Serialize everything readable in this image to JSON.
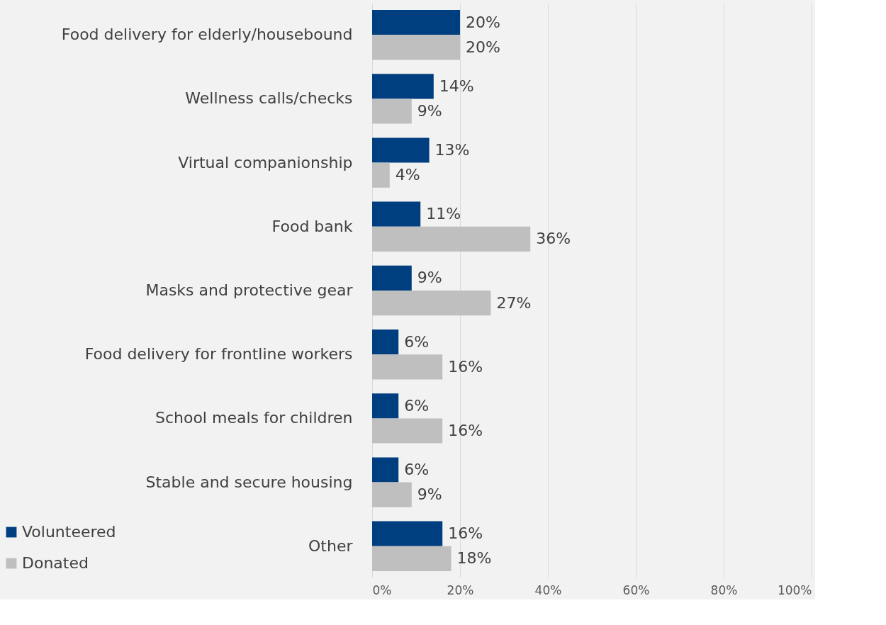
{
  "chart_data": {
    "type": "bar",
    "orientation": "horizontal",
    "categories": [
      "Food delivery for elderly/housebound",
      "Wellness calls/checks",
      "Virtual companionship",
      "Food bank",
      "Masks and protective gear",
      "Food delivery for frontline workers",
      "School meals for children",
      "Stable and secure housing",
      "Other"
    ],
    "series": [
      {
        "name": "Volunteered",
        "color": "#003f7f",
        "values": [
          20,
          14,
          13,
          11,
          9,
          6,
          6,
          6,
          16
        ],
        "value_labels": [
          "20%",
          "14%",
          "13%",
          "11%",
          "9%",
          "6%",
          "6%",
          "6%",
          "16%"
        ]
      },
      {
        "name": "Donated",
        "color": "#bfbfbf",
        "values": [
          20,
          9,
          4,
          36,
          27,
          16,
          16,
          9,
          18
        ],
        "value_labels": [
          "20%",
          "9%",
          "4%",
          "36%",
          "27%",
          "16%",
          "16%",
          "9%",
          "18%"
        ]
      }
    ],
    "xlim": [
      0,
      100
    ],
    "xticks": [
      {
        "value": 0,
        "label": "0%"
      },
      {
        "value": 20,
        "label": "20%"
      },
      {
        "value": 40,
        "label": "40%"
      },
      {
        "value": 60,
        "label": "60%"
      },
      {
        "value": 80,
        "label": "80%"
      },
      {
        "value": 100,
        "label": "100%"
      }
    ],
    "grid": "x",
    "legend": "bottom left"
  }
}
